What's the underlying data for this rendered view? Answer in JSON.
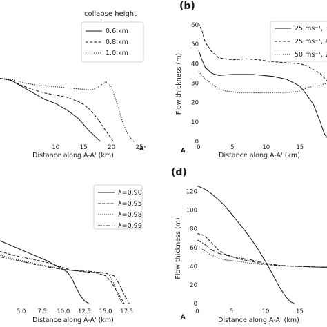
{
  "chart_data": [
    {
      "panel_label": "",
      "type": "line",
      "xlabel": "Distance along A-A' (km)",
      "xlim": [
        0,
        25
      ],
      "xticks": [
        10,
        15,
        20,
        25
      ],
      "end_label": "A'",
      "ylabel": "",
      "ylim": [
        0,
        60
      ],
      "yticks": [],
      "legend_title": "collapse height",
      "legend_position": "top-right",
      "series": [
        {
          "name": "0.6 km",
          "style": "solid",
          "x": [
            0,
            2,
            4,
            6,
            8,
            10,
            12,
            14,
            15,
            16,
            17,
            17.6,
            18
          ],
          "y": [
            30,
            29,
            26,
            23,
            20,
            18,
            15,
            11,
            8,
            5,
            2.5,
            1,
            0
          ]
        },
        {
          "name": "0.8 km",
          "style": "dashed",
          "x": [
            0,
            2,
            4,
            6,
            8,
            10,
            12,
            14,
            15,
            16,
            17,
            18,
            19,
            19.8,
            20.3
          ],
          "y": [
            30,
            29,
            26.5,
            24.5,
            23,
            22,
            21,
            19,
            17.5,
            15.5,
            12.5,
            9,
            5,
            2,
            0
          ]
        },
        {
          "name": "1.0 km",
          "style": "dotted",
          "x": [
            0,
            2,
            4,
            6,
            8,
            10,
            12,
            14,
            16,
            17,
            18,
            19,
            20,
            21,
            22,
            23,
            24
          ],
          "y": [
            30,
            29.5,
            28,
            27,
            26.5,
            26,
            25.5,
            25,
            24.5,
            25,
            26.5,
            28.5,
            26,
            18,
            9,
            3,
            0
          ]
        }
      ]
    },
    {
      "panel_label": "(b)",
      "type": "line",
      "xlabel": "Distance along A-A' (km)",
      "xlim": [
        -1,
        19
      ],
      "xticks": [
        0,
        5,
        10,
        15
      ],
      "start_label": "A",
      "ylabel": "Flow thickness (m)",
      "ylim": [
        0,
        65
      ],
      "yticks": [
        0,
        10,
        20,
        30,
        40,
        50,
        60
      ],
      "legend_position": "top-right",
      "series": [
        {
          "name": "25 ms⁻¹, 3",
          "style": "solid",
          "x": [
            0,
            0.5,
            1,
            2,
            3,
            5,
            8,
            11,
            13,
            15,
            16,
            17,
            18,
            18.6,
            19
          ],
          "y": [
            47,
            42,
            38,
            35,
            34,
            34.5,
            34.5,
            33.5,
            32,
            28.5,
            24,
            19,
            10,
            4,
            2
          ]
        },
        {
          "name": "25 ms⁻¹, 4",
          "style": "dashed",
          "x": [
            0,
            0.5,
            1,
            2,
            3,
            5,
            7,
            9,
            11,
            13,
            15,
            16,
            17,
            18,
            19
          ],
          "y": [
            61,
            57,
            51,
            46,
            43,
            42,
            42.5,
            42,
            41,
            40.5,
            40,
            39,
            37,
            35,
            31
          ]
        },
        {
          "name": "50 ms⁻¹, 2",
          "style": "dotted",
          "x": [
            0,
            1,
            2,
            3,
            4,
            6,
            8,
            10,
            12,
            14,
            15,
            16,
            17,
            18,
            19
          ],
          "y": [
            36,
            32,
            29.5,
            27,
            26,
            25,
            25,
            25,
            25,
            25.5,
            26,
            27.5,
            28.5,
            29,
            30
          ]
        }
      ]
    },
    {
      "panel_label": "",
      "type": "line",
      "xlabel": "Distance along A-A' (km)",
      "xlim": [
        2.5,
        19
      ],
      "xticks": [
        5.0,
        7.5,
        10.0,
        12.5,
        15.0,
        17.5
      ],
      "ylabel": "",
      "ylim": [
        0,
        70
      ],
      "yticks": [],
      "legend_position": "top-right",
      "series": [
        {
          "name": "λ=0.90",
          "style": "solid",
          "x": [
            2.5,
            4,
            5,
            6,
            7,
            8,
            9,
            10,
            10.5,
            11,
            11.5,
            12,
            12.5,
            13
          ],
          "y": [
            35,
            32,
            30,
            28,
            26,
            24,
            21.5,
            19,
            17.5,
            14,
            9,
            4.5,
            1.5,
            0
          ]
        },
        {
          "name": "λ=0.95",
          "style": "dashed",
          "x": [
            2.5,
            4,
            6,
            8,
            10,
            11,
            12,
            13,
            14,
            15,
            15.7,
            16.3,
            16.9,
            17.2
          ],
          "y": [
            29,
            27,
            25,
            23,
            20,
            18.5,
            18,
            17.5,
            17,
            15.5,
            12,
            7,
            2.5,
            0
          ]
        },
        {
          "name": "λ=0.98",
          "style": "dotted",
          "x": [
            2.5,
            4,
            6,
            8,
            10,
            12,
            13,
            14,
            15,
            15.5,
            16,
            16.5,
            17
          ],
          "y": [
            27,
            25,
            23,
            21,
            19,
            18,
            17.5,
            17.5,
            17,
            15.5,
            11,
            4,
            0
          ]
        },
        {
          "name": "λ=0.99",
          "style": "dashdot",
          "x": [
            2.5,
            4,
            6,
            8,
            10,
            11,
            12,
            13,
            14,
            15,
            16,
            16.6,
            17.2,
            17.8
          ],
          "y": [
            26,
            24.5,
            22.5,
            20.5,
            19,
            18.5,
            18.2,
            18,
            17.5,
            17,
            15.5,
            11,
            5,
            0
          ]
        }
      ]
    },
    {
      "panel_label": "(d)",
      "type": "line",
      "xlabel": "Distance along A-A' (km)",
      "xlim": [
        -1,
        19
      ],
      "xticks": [
        0,
        5,
        10,
        15
      ],
      "start_label": "A",
      "ylabel": "Flow thickness (m)",
      "ylim": [
        0,
        130
      ],
      "yticks": [
        0,
        20,
        40,
        60,
        80,
        100,
        120
      ],
      "series": [
        {
          "name": "",
          "style": "solid",
          "x": [
            0,
            1,
            2,
            3,
            4,
            5,
            6,
            7,
            8,
            9,
            10,
            11,
            12,
            13,
            13.6,
            14.2
          ],
          "y": [
            126,
            123,
            118,
            112,
            105,
            96,
            87,
            78,
            68,
            57,
            45,
            32,
            18,
            7,
            2,
            0
          ]
        },
        {
          "name": "",
          "style": "dashed",
          "x": [
            0,
            1,
            2,
            3,
            4,
            6,
            8,
            10,
            12,
            14,
            16,
            18,
            19
          ],
          "y": [
            75,
            73,
            66,
            58,
            53,
            48,
            45,
            42,
            40.5,
            40,
            39.5,
            39,
            39
          ]
        },
        {
          "name": "",
          "style": "dashdot",
          "x": [
            0,
            1,
            2,
            3,
            4,
            6,
            8,
            10,
            12,
            14,
            16,
            18,
            19
          ],
          "y": [
            68,
            64,
            58,
            54,
            52,
            49,
            46.5,
            43,
            41,
            40,
            39.5,
            39,
            39
          ]
        },
        {
          "name": "",
          "style": "dotted",
          "x": [
            0,
            1,
            2,
            3,
            4,
            6,
            8,
            10,
            12,
            14,
            16,
            18,
            19
          ],
          "y": [
            62,
            57,
            52,
            49,
            47,
            45,
            43,
            41.5,
            40.5,
            40,
            39.5,
            39,
            39
          ]
        }
      ]
    }
  ]
}
